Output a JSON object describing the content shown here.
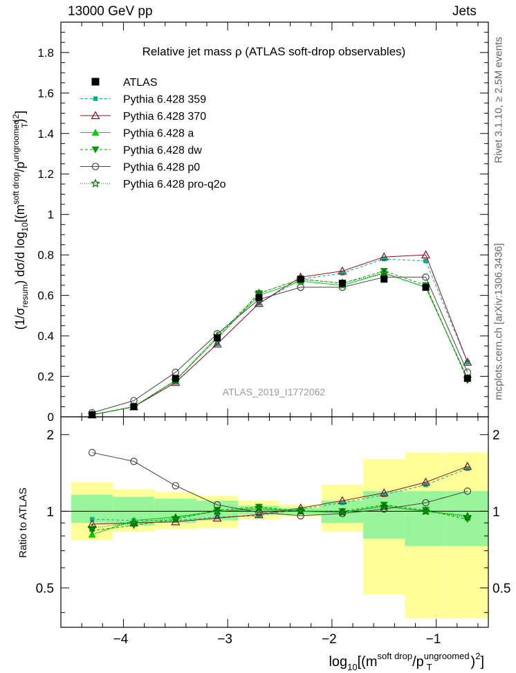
{
  "header": {
    "left": "13000 GeV pp",
    "right": "Jets"
  },
  "side_labels": {
    "rivet": "Rivet 3.1.10, ≥ 2.5M events",
    "mcplots": "mcplots.cern.ch [arXiv:1306.3436]"
  },
  "chart_data": {
    "type": "line",
    "title": "Relative jet mass  ρ (ATLAS soft-drop observables)",
    "watermark": "ATLAS_2019_I1772062",
    "x": [
      -4.3,
      -3.9,
      -3.5,
      -3.1,
      -2.7,
      -2.3,
      -1.9,
      -1.5,
      -1.1,
      -0.7
    ],
    "xlim": [
      -4.6,
      -0.5
    ],
    "xticks": [
      -4,
      -3,
      -2,
      -1
    ],
    "xlabel": {
      "pre": "log",
      "sub1": "10",
      "mid": "[(m",
      "sup1": "soft drop",
      "mid2": "/p",
      "sup2": "ungroomed",
      "sub2": "T",
      "post": ")",
      "sup3": "2",
      "end": "]"
    },
    "main": {
      "ylim": [
        0,
        1.95
      ],
      "yticks": [
        "0",
        "0.2",
        "0.4",
        "0.6",
        "0.8",
        "1",
        "1.2",
        "1.4",
        "1.6",
        "1.8"
      ],
      "ylabel": {
        "p1": "(1/σ",
        "sub1": "resum",
        "p2": ") dσ/d log",
        "sub2": "10",
        "p3": "[(m",
        "sup1": "soft drop",
        "p4": "/p",
        "sup2": "ungroomed",
        "sub3": "T",
        "p5": ")",
        "sup3": "2",
        "p6": "]"
      }
    },
    "ratio": {
      "ylim": [
        0.35,
        2.35
      ],
      "yticks": [
        "0.5",
        "1",
        "2"
      ],
      "ylabel": "Ratio to ATLAS"
    },
    "atlas": {
      "name": "ATLAS",
      "values": [
        0.01,
        0.05,
        0.19,
        0.39,
        0.59,
        0.68,
        0.66,
        0.68,
        0.64,
        0.19
      ],
      "ratio_band_inner": [
        [
          0.9,
          1.16
        ],
        [
          0.88,
          1.14
        ],
        [
          0.9,
          1.12
        ],
        [
          0.92,
          1.1
        ],
        [
          0.97,
          1.05
        ],
        [
          0.97,
          1.03
        ],
        [
          0.9,
          1.1
        ],
        [
          0.78,
          1.2
        ],
        [
          0.73,
          1.2
        ],
        [
          0.73,
          1.2
        ]
      ],
      "ratio_band_outer": [
        [
          0.77,
          1.3
        ],
        [
          0.83,
          1.22
        ],
        [
          0.85,
          1.19
        ],
        [
          0.86,
          1.15
        ],
        [
          0.93,
          1.1
        ],
        [
          0.95,
          1.06
        ],
        [
          0.83,
          1.27
        ],
        [
          0.47,
          1.6
        ],
        [
          0.38,
          1.7
        ],
        [
          0.38,
          1.7
        ]
      ]
    },
    "series": [
      {
        "name": "Pythia 6.428 359",
        "color": "#00b28b",
        "dash": "4,3",
        "marker": "square-small",
        "values": [
          0.01,
          0.05,
          0.17,
          0.36,
          0.56,
          0.68,
          0.71,
          0.78,
          0.77,
          0.27
        ],
        "ratio": [
          0.93,
          0.92,
          0.92,
          0.95,
          0.96,
          1.02,
          1.08,
          1.16,
          1.27,
          1.47
        ]
      },
      {
        "name": "Pythia 6.428 370",
        "color": "#8b0a1f",
        "dash": "",
        "marker": "triangle-open",
        "values": [
          0.01,
          0.05,
          0.17,
          0.36,
          0.56,
          0.69,
          0.72,
          0.79,
          0.8,
          0.27
        ],
        "ratio": [
          0.89,
          0.9,
          0.91,
          0.94,
          0.97,
          1.03,
          1.1,
          1.18,
          1.3,
          1.5
        ]
      },
      {
        "name": "Pythia 6.428 a",
        "color": "#00cc00",
        "dash": "",
        "marker": "triangle-filled",
        "values": [
          0.01,
          0.05,
          0.18,
          0.39,
          0.6,
          0.67,
          0.65,
          0.71,
          0.64,
          0.19
        ],
        "ratio": [
          0.81,
          0.92,
          0.95,
          1.0,
          1.02,
          1.0,
          0.99,
          1.05,
          1.0,
          0.96
        ]
      },
      {
        "name": "Pythia 6.428 dw",
        "color": "#009900",
        "dash": "4,3",
        "marker": "triangle-down-filled",
        "values": [
          0.01,
          0.05,
          0.18,
          0.39,
          0.61,
          0.68,
          0.66,
          0.72,
          0.65,
          0.18
        ],
        "ratio": [
          0.84,
          0.88,
          0.93,
          1.01,
          1.04,
          1.0,
          1.0,
          1.06,
          1.01,
          0.93
        ]
      },
      {
        "name": "Pythia 6.428 p0",
        "color": "#444444",
        "dash": "",
        "marker": "circle-open",
        "values": [
          0.02,
          0.08,
          0.22,
          0.41,
          0.58,
          0.64,
          0.64,
          0.69,
          0.69,
          0.22
        ],
        "ratio": [
          1.7,
          1.57,
          1.26,
          1.06,
          0.99,
          0.96,
          0.98,
          1.02,
          1.08,
          1.2
        ]
      },
      {
        "name": "Pythia 6.428 pro-q2o",
        "color": "#006600",
        "dash": "1,2",
        "marker": "star",
        "values": [
          0.01,
          0.05,
          0.18,
          0.4,
          0.61,
          0.68,
          0.66,
          0.71,
          0.64,
          0.19
        ],
        "ratio": [
          0.86,
          0.9,
          0.94,
          1.0,
          1.03,
          1.0,
          0.99,
          1.04,
          1.0,
          0.95
        ]
      }
    ]
  }
}
